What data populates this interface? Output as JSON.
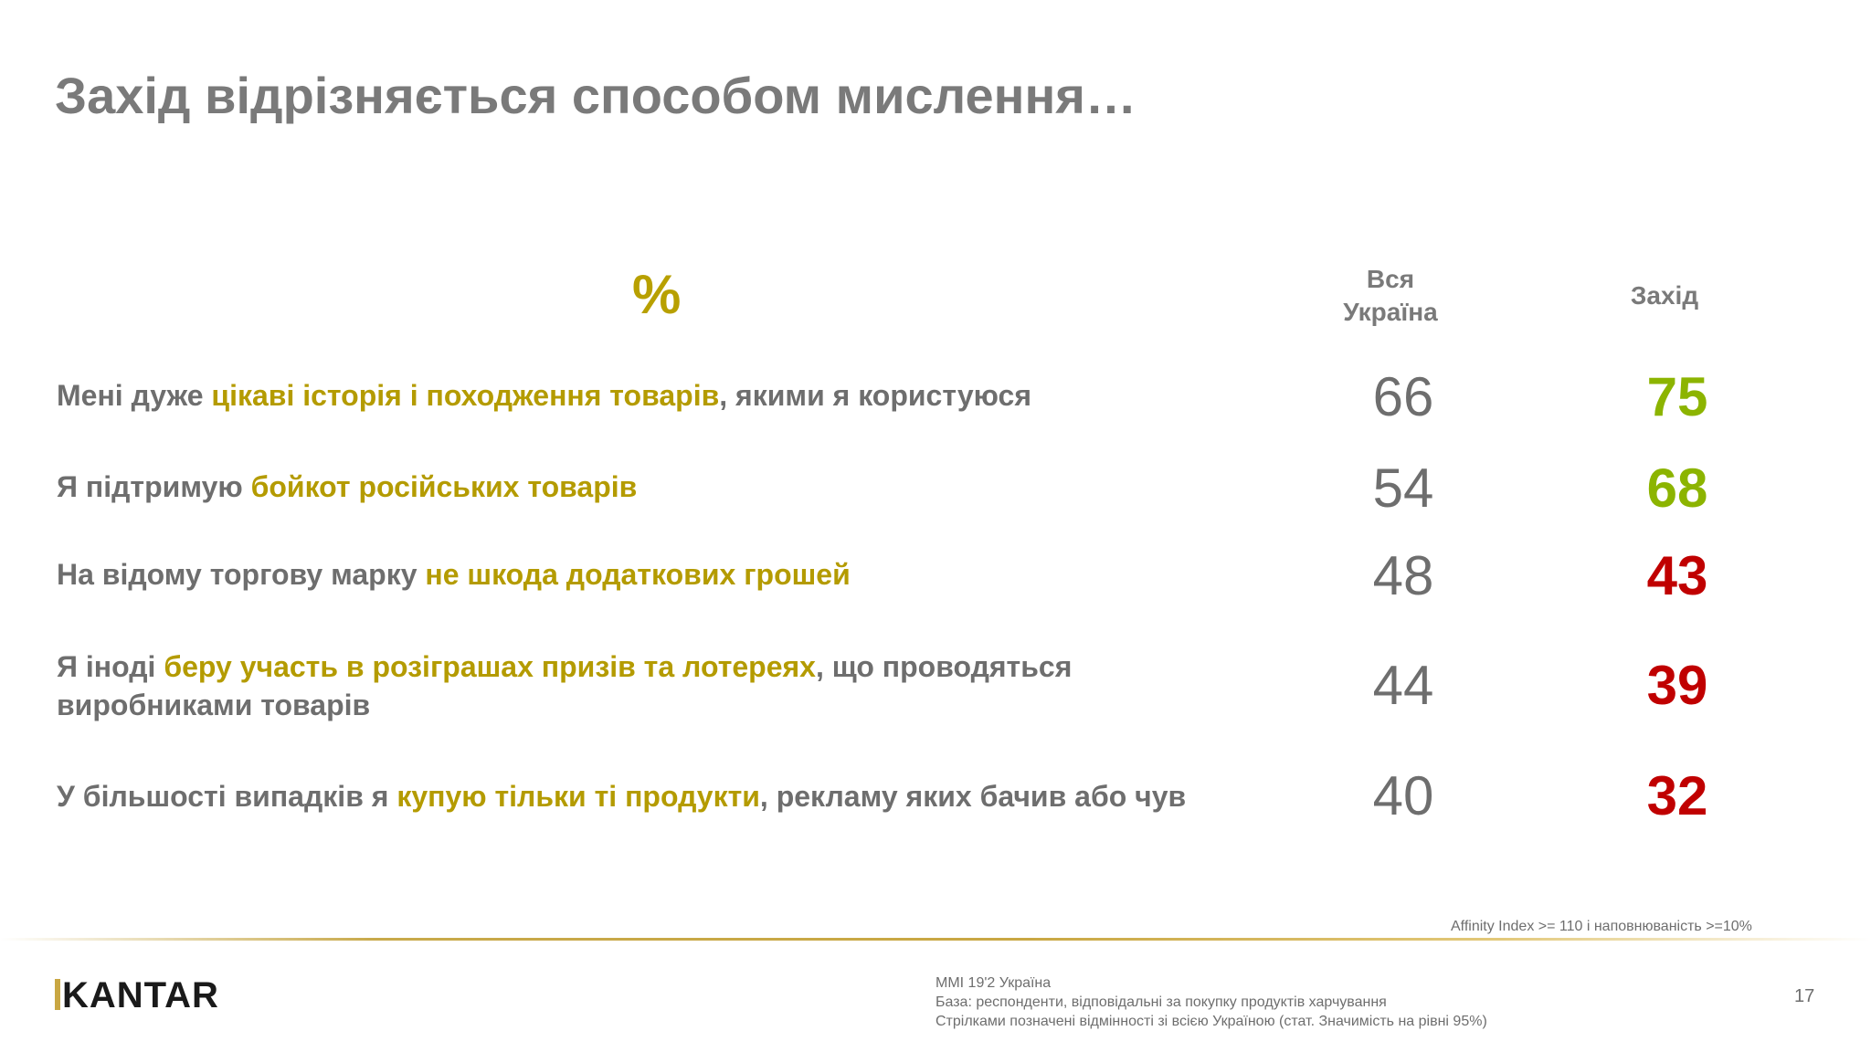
{
  "title": "Захід відрізняється способом мислення…",
  "table": {
    "unit_label": "%",
    "columns": [
      "Вся\nУкраїна",
      "Захід"
    ],
    "rows": [
      {
        "text_parts": [
          "Мені дуже ",
          "цікаві історія і походження товарів",
          ", якими я користуюся"
        ],
        "ukraine": "66",
        "west": "75",
        "west_color": "#8cb400"
      },
      {
        "text_parts": [
          "Я підтримую ",
          "бойкот російських товарів",
          ""
        ],
        "ukraine": "54",
        "west": "68",
        "west_color": "#8cb400"
      },
      {
        "text_parts": [
          "На відому торгову марку ",
          "не шкода додаткових грошей",
          ""
        ],
        "ukraine": "48",
        "west": "43",
        "west_color": "#c00000"
      },
      {
        "text_parts": [
          "Я іноді ",
          "беру участь в розіграшах призів та лотереях",
          ", що проводяться виробниками товарів"
        ],
        "ukraine": "44",
        "west": "39",
        "west_color": "#c00000"
      },
      {
        "text_parts": [
          "У більшості випадків я ",
          "купую тільки ті продукти",
          ", рекламу яких бачив або чув"
        ],
        "ukraine": "40",
        "west": "32",
        "west_color": "#c00000"
      }
    ]
  },
  "footer": {
    "affinity_note": "Affinity Index >= 110 і наповнюваність >=10%",
    "logo": "KANTAR",
    "source_lines": [
      "MMI 19'2 Україна",
      "База: респонденти, відповідальні за покупку продуктів харчування",
      "Стрілками позначені відмінності зі всією Україною  (стат. Значимість на рівні 95%)"
    ],
    "page_number": "17"
  },
  "colors": {
    "highlight": "#b49b00",
    "positive": "#8cb400",
    "negative": "#c00000",
    "accent_gold": "#c9a743"
  }
}
